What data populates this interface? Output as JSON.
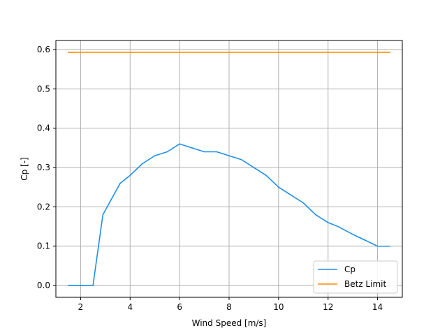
{
  "chart_data": {
    "type": "line",
    "xlabel": "Wind Speed [m/s]",
    "ylabel": "Cp [-]",
    "xlim": [
      1.0,
      15.0
    ],
    "ylim": [
      -0.03,
      0.623
    ],
    "xticks": [
      2,
      4,
      6,
      8,
      10,
      12,
      14
    ],
    "xtick_labels": [
      "2",
      "4",
      "6",
      "8",
      "10",
      "12",
      "14"
    ],
    "yticks": [
      0.0,
      0.1,
      0.2,
      0.3,
      0.4,
      0.5,
      0.6
    ],
    "ytick_labels": [
      "0.0",
      "0.1",
      "0.2",
      "0.3",
      "0.4",
      "0.5",
      "0.6"
    ],
    "grid": true,
    "legend_position": "lower-right",
    "series": [
      {
        "name": "Cp",
        "color": "#1f8fea",
        "x": [
          1.5,
          2.0,
          2.5,
          2.9,
          3.6,
          4.0,
          4.5,
          5.0,
          5.5,
          6.0,
          6.5,
          7.0,
          7.5,
          8.0,
          8.5,
          9.0,
          9.5,
          10.0,
          10.5,
          11.0,
          11.5,
          12.0,
          12.4,
          13.0,
          13.5,
          14.0,
          14.5
        ],
        "values": [
          0.0,
          0.0,
          0.0,
          0.18,
          0.26,
          0.28,
          0.31,
          0.33,
          0.34,
          0.36,
          0.35,
          0.34,
          0.34,
          0.33,
          0.32,
          0.3,
          0.28,
          0.25,
          0.23,
          0.21,
          0.18,
          0.16,
          0.15,
          0.13,
          0.115,
          0.1,
          0.1
        ]
      },
      {
        "name": "Betz Limit",
        "color": "#ff8c00",
        "x": [
          1.5,
          14.5
        ],
        "values": [
          0.593,
          0.593
        ]
      }
    ]
  }
}
